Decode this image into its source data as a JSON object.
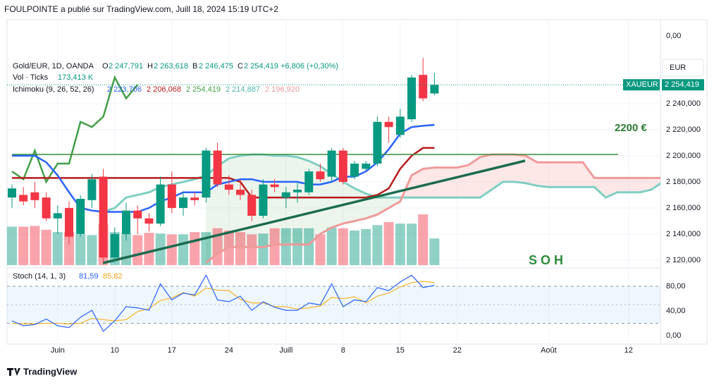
{
  "header": {
    "published": "FOULPOINTE a publié sur TradingView.com, Juill 18, 2024 15:19 UTC+2",
    "logo": "TradingView",
    "currency_button": "EUR",
    "top_scale_label": "0,00",
    "annotations": [
      "2200 €",
      "S O H"
    ]
  },
  "legend": {
    "symbol": "Gold/EUR, 1D, OANDA",
    "ohlc": [
      {
        "label": "O",
        "value": "2 247,791"
      },
      {
        "label": "H",
        "value": "2 263,618"
      },
      {
        "label": "B",
        "value": "2 246,475"
      },
      {
        "label": "C",
        "value": "2 254,419"
      }
    ],
    "change": "+6,806 (+0,30%)",
    "volume_name": "Vol · Ticks",
    "volume_value": "173,413 K",
    "ichimoku_name": "Ichimoku (9, 26, 52, 26)",
    "ichimoku_values": [
      {
        "text": "2 223,706",
        "color": "#2962ff"
      },
      {
        "text": "2 206,068",
        "color": "#b71c1c"
      },
      {
        "text": "2 254,419",
        "color": "#43a047"
      },
      {
        "text": "2 214,887",
        "color": "#4db6ac"
      },
      {
        "text": "2 196,920",
        "color": "#ef9a9a"
      }
    ],
    "stoch_name": "Stoch (14, 1, 3)",
    "stoch_values": [
      {
        "text": "81,59",
        "color": "#2962ff"
      },
      {
        "text": "85,82",
        "color": "#f5a623"
      }
    ],
    "symbol_tag": "XAUEUR",
    "last_label": "2 254,419"
  },
  "chart_data": [
    {
      "type": "candlestick",
      "categories": [
        null,
        null,
        null,
        null,
        "Juin",
        null,
        null,
        null,
        null,
        "10",
        null,
        null,
        null,
        null,
        "17",
        null,
        null,
        null,
        null,
        "24",
        null,
        null,
        null,
        null,
        "Juill",
        null,
        null,
        null,
        null,
        "8",
        null,
        null,
        null,
        null,
        "15",
        null,
        null,
        null,
        null,
        "22",
        null,
        null,
        null,
        null,
        null,
        null,
        null,
        "Août",
        null,
        null,
        null,
        null,
        null,
        null,
        "12",
        null,
        null,
        null
      ],
      "open": [
        2168,
        2170,
        2172,
        2168,
        2152,
        2160,
        2140,
        2166,
        2184,
        2122,
        2140,
        2158,
        2152,
        2148,
        2178,
        2160,
        2168,
        2168,
        2204,
        2178,
        2174,
        2170,
        2154,
        2178,
        2168,
        2172,
        2172,
        2188,
        2184,
        2204,
        2184,
        2190,
        2194,
        2226,
        2216,
        2228,
        2262,
        2247.791,
        null,
        null,
        null,
        null,
        null,
        null,
        null,
        null,
        null,
        null,
        null,
        null,
        null,
        null,
        null,
        null,
        null,
        null,
        null,
        null
      ],
      "high": [
        2178,
        2176,
        2180,
        2172,
        2162,
        2165,
        2170,
        2186,
        2190,
        2145,
        2164,
        2162,
        2156,
        2184,
        2188,
        2172,
        2172,
        2206,
        2210,
        2185,
        2182,
        2174,
        2182,
        2182,
        2176,
        2180,
        2190,
        2194,
        2206,
        2206,
        2196,
        2196,
        2230,
        2230,
        2236,
        2262,
        2275,
        2263.618,
        null,
        null,
        null,
        null,
        null,
        null,
        null,
        null,
        null,
        null,
        null,
        null,
        null,
        null,
        null,
        null,
        null,
        null,
        null,
        null
      ],
      "low": [
        2160,
        2162,
        2160,
        2150,
        2140,
        2132,
        2138,
        2160,
        2118,
        2118,
        2135,
        2140,
        2142,
        2146,
        2156,
        2154,
        2162,
        2164,
        2176,
        2170,
        2166,
        2150,
        2152,
        2172,
        2160,
        2164,
        2170,
        2180,
        2180,
        2178,
        2182,
        2188,
        2192,
        2210,
        2214,
        2226,
        2242,
        2246.475,
        null,
        null,
        null,
        null,
        null,
        null,
        null,
        null,
        null,
        null,
        null,
        null,
        null,
        null,
        null,
        null,
        null,
        null,
        null,
        null
      ],
      "close": [
        2175,
        2165,
        2166,
        2152,
        2156,
        2138,
        2167,
        2182,
        2122,
        2140,
        2158,
        2152,
        2148,
        2178,
        2160,
        2168,
        2166,
        2204,
        2178,
        2174,
        2170,
        2154,
        2178,
        2176,
        2172,
        2174,
        2188,
        2182,
        2204,
        2180,
        2194,
        2194,
        2226,
        2222,
        2230,
        2260,
        2244,
        2254.419,
        null,
        null,
        null,
        null,
        null,
        null,
        null,
        null,
        null,
        null,
        null,
        null,
        null,
        null,
        null,
        null,
        null,
        null,
        null,
        null
      ],
      "volume": [
        250,
        250,
        255,
        230,
        215,
        215,
        200,
        195,
        265,
        215,
        205,
        195,
        210,
        205,
        200,
        200,
        215,
        215,
        240,
        225,
        215,
        200,
        205,
        240,
        240,
        240,
        240,
        200,
        245,
        240,
        225,
        235,
        260,
        280,
        270,
        270,
        330,
        173.413,
        null,
        null,
        null,
        null,
        null,
        null,
        null,
        null,
        null,
        null,
        null,
        null,
        null,
        null,
        null,
        null,
        null,
        null,
        null,
        null
      ],
      "volume_lim": [
        0,
        1587
      ],
      "up_color": "#089981",
      "down_color": "#f23645",
      "tenkan": {
        "color": "#2962ff",
        "values": [
          2200,
          2200,
          2200,
          2195,
          2185,
          2172,
          2160,
          2158,
          2157,
          2157,
          2157,
          2157,
          2160,
          2165,
          2168,
          2172,
          2172,
          2172,
          2178,
          2180,
          2182,
          2182,
          2180,
          2180,
          2180,
          2180,
          2178,
          2178,
          2180,
          2184,
          2184,
          2188,
          2195,
          2205,
          2217,
          2222,
          2223,
          2223.706,
          null,
          null,
          null,
          null,
          null,
          null,
          null,
          null,
          null,
          null,
          null,
          null,
          null,
          null,
          null,
          null,
          null,
          null,
          null,
          null
        ]
      },
      "kijun": {
        "color": "#b71c1c",
        "values": [
          2183,
          2183,
          2183,
          2183,
          2183,
          2183,
          2183,
          2183,
          2183,
          2183,
          2183,
          2183,
          2183,
          2183,
          2183,
          2183,
          2183,
          2183,
          2183,
          2183,
          2180,
          2168,
          2168,
          2168,
          2168,
          2168,
          2168,
          2168,
          2168,
          2168,
          2168,
          2168,
          2170,
          2175,
          2190,
          2200,
          2206,
          2206.068,
          null,
          null,
          null,
          null,
          null,
          null,
          null,
          null,
          null,
          null,
          null,
          null,
          null,
          null,
          null,
          null,
          null,
          null,
          null,
          null
        ]
      },
      "chikou": {
        "color": "#43a047",
        "values": [
          2188,
          2182,
          2204,
          2180,
          2194,
          2194,
          2226,
          2222,
          2230,
          2260,
          2244,
          2254.419,
          null,
          null,
          null,
          null,
          null,
          null,
          null,
          null,
          null,
          null,
          null,
          null,
          null,
          null,
          null,
          null,
          null,
          null,
          null,
          null,
          null,
          null,
          null,
          null,
          null,
          null,
          null,
          null,
          null,
          null,
          null,
          null,
          null,
          null,
          null,
          null,
          null,
          null,
          null,
          null,
          null,
          null,
          null,
          null,
          null,
          null
        ]
      },
      "span_a": {
        "color": "#7fcfc2",
        "values": [
          null,
          null,
          null,
          null,
          null,
          null,
          null,
          null,
          2157,
          2160,
          2168,
          2170,
          2172,
          2176,
          2178,
          2180,
          2182,
          2185,
          2192,
          2198,
          2200,
          2201,
          2201,
          2200,
          2200,
          2199,
          2196,
          2192,
          2186,
          2180,
          2175,
          2171,
          2168,
          2168,
          2168,
          2168,
          2168,
          2168,
          2168,
          2168,
          2168,
          2168,
          2174,
          2180,
          2180,
          2179,
          2177,
          2176,
          2176,
          2176,
          2176,
          2176,
          2168,
          2172,
          2172,
          2172,
          2174,
          2180
        ]
      },
      "span_b": {
        "color": "#ef9a9a",
        "values": [
          null,
          null,
          null,
          null,
          null,
          null,
          null,
          null,
          null,
          null,
          null,
          null,
          null,
          null,
          null,
          null,
          null,
          2118,
          2125,
          2130,
          2130,
          2130,
          2130,
          2132,
          2132,
          2132,
          2132,
          2140,
          2145,
          2148,
          2150,
          2152,
          2155,
          2160,
          2165,
          2185,
          2190,
          2191,
          2191,
          2191,
          2193,
          2199,
          2201,
          2201,
          2201,
          2200,
          2195,
          2195,
          2195,
          2195,
          2195,
          2183,
          2183,
          2183,
          2183,
          2183,
          2183,
          2183
        ]
      },
      "cloud_up_color": "rgba(67,160,71,0.10)",
      "cloud_down_color": "rgba(244,67,54,0.12)",
      "ylim": [
        2115.1,
        2303.2
      ],
      "yticks": [
        {
          "value": 2120,
          "label": "2 120,000"
        },
        {
          "value": 2140,
          "label": "2 140,000"
        },
        {
          "value": 2160,
          "label": "2 160,000"
        },
        {
          "value": 2180,
          "label": "2 180,000"
        },
        {
          "value": 2200,
          "label": "2 200,000"
        },
        {
          "value": 2220,
          "label": "2 220,000"
        },
        {
          "value": 2240,
          "label": "2 240,000"
        }
      ],
      "grid": true
    },
    {
      "type": "stochastic",
      "k": {
        "color": "#2962ff",
        "values": [
          24,
          16,
          18,
          27,
          16,
          13,
          30,
          41,
          7,
          24,
          47,
          45,
          41,
          84,
          58,
          69,
          66,
          98,
          58,
          55,
          64,
          41,
          55,
          46,
          41,
          41,
          53,
          50,
          84,
          47,
          58,
          55,
          78,
          73,
          87,
          98,
          78,
          81.59
        ]
      },
      "d": {
        "color": "#f5b428",
        "values": [
          20,
          19,
          19,
          20,
          20,
          19,
          20,
          28,
          26,
          24,
          26,
          39,
          44,
          57,
          61,
          70,
          64,
          77,
          74,
          73,
          59,
          53,
          53,
          47,
          47,
          43,
          45,
          48,
          62,
          60,
          63,
          53,
          64,
          69,
          79,
          86,
          88,
          85.82
        ]
      },
      "bands": [
        20,
        80
      ],
      "midline": 50,
      "band_color": "rgba(33,150,243,0.08)",
      "ylim": [
        -11.4,
        108.6
      ],
      "yticks": [
        {
          "value": 0,
          "label": "0,00"
        },
        {
          "value": 40,
          "label": "40,00"
        },
        {
          "value": 80,
          "label": "80,00"
        }
      ]
    }
  ]
}
